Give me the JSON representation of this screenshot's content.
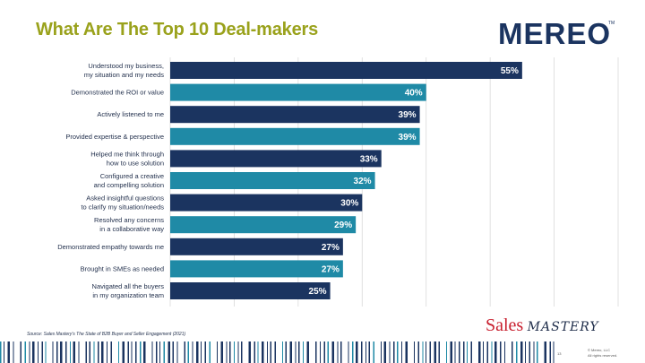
{
  "slide": {
    "title": "What Are The Top 10 Deal-makers",
    "source": "Source: Sales Mastery's The State of B2B Buyer and Seller Engagement (2021)",
    "page_number": "13",
    "copyright_line1": "© Mereo, LLC",
    "copyright_line2": "All rights reserved."
  },
  "logos": {
    "mereo_text": "MEREO",
    "mereo_tm": "TM",
    "sales_mastery_sales": "Sales",
    "sales_mastery_mastery": "MASTERY"
  },
  "colors": {
    "title": "#9aa21c",
    "bar_dark": "#1b3460",
    "bar_light": "#1f8aa6",
    "grid": "#d9d9d9",
    "brand_red": "#c8202f"
  },
  "chart_data": {
    "type": "bar",
    "orientation": "horizontal",
    "title": "What Are The Top 10 Deal-makers",
    "xlim": [
      0,
      70
    ],
    "grid": true,
    "categories": [
      [
        "Understood my business,",
        "my situation and my needs"
      ],
      [
        "Demonstrated the ROI or value"
      ],
      [
        "Actively listened to me"
      ],
      [
        "Provided expertise & perspective"
      ],
      [
        "Helped me think through",
        "how to use solution"
      ],
      [
        "Configured a creative",
        "and compelling solution"
      ],
      [
        "Asked insightful questions",
        "to clarify my situation/needs"
      ],
      [
        "Resolved any concerns",
        "in a collaborative way"
      ],
      [
        "Demonstrated empathy towards me"
      ],
      [
        "Brought in SMEs as needed"
      ],
      [
        "Navigated all the buyers",
        "in my organization team"
      ]
    ],
    "values": [
      55,
      40,
      39,
      39,
      33,
      32,
      30,
      29,
      27,
      27,
      25
    ],
    "value_labels": [
      "55%",
      "40%",
      "39%",
      "39%",
      "33%",
      "32%",
      "30%",
      "29%",
      "27%",
      "27%",
      "25%"
    ],
    "bar_colors": [
      "dark",
      "light",
      "dark",
      "light",
      "dark",
      "light",
      "dark",
      "light",
      "dark",
      "light",
      "dark"
    ]
  }
}
